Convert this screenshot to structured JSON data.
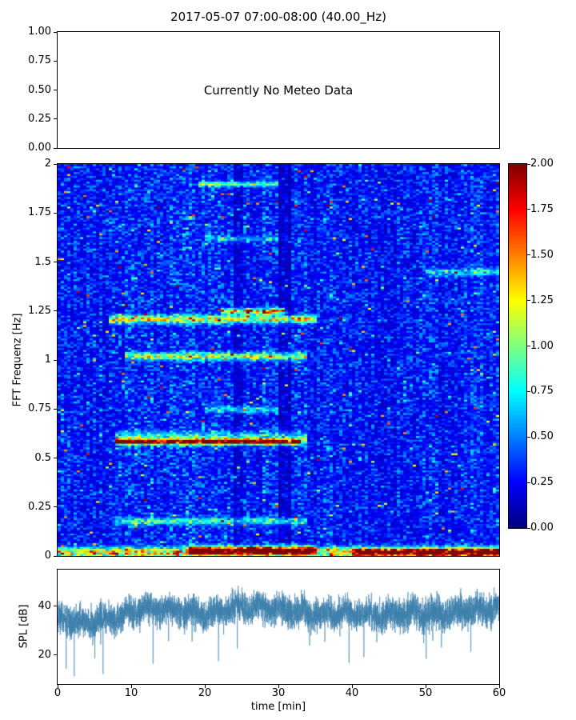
{
  "title": "2017-05-07 07:00-08:00 (40.00_Hz)",
  "meteo_panel": {
    "message": "Currently No Meteo Data",
    "yticks": [
      "1.00",
      "0.75",
      "0.50",
      "0.25",
      "0.00"
    ]
  },
  "spectrogram_panel": {
    "ylabel": "FFT Frequenz [Hz]",
    "yticks": [
      "2",
      "1.75",
      "1.5",
      "1.25",
      "1",
      "0.75",
      "0.5",
      "0.25",
      "0"
    ]
  },
  "colorbar": {
    "ticks": [
      "2.00",
      "1.75",
      "1.50",
      "1.25",
      "1.00",
      "0.75",
      "0.50",
      "0.25",
      "0.00"
    ]
  },
  "spl_panel": {
    "ylabel": "SPL [dB]",
    "xlabel": "time [min]",
    "yticks": [
      "40",
      "20"
    ],
    "xticks": [
      "0",
      "10",
      "20",
      "30",
      "40",
      "50",
      "60"
    ]
  },
  "chart_data": [
    {
      "type": "line",
      "panel": "meteo",
      "title": "2017-05-07 07:00-08:00 (40.00_Hz)",
      "annotation": "Currently No Meteo Data",
      "ylim": [
        0,
        1
      ],
      "yticks": [
        0,
        0.25,
        0.5,
        0.75,
        1.0
      ],
      "series": []
    },
    {
      "type": "heatmap",
      "panel": "spectrogram",
      "ylabel": "FFT Frequenz [Hz]",
      "x_range_min": [
        0,
        60
      ],
      "y_range_hz": [
        0,
        2
      ],
      "vmin": 0,
      "vmax": 2,
      "colormap": "jet",
      "n_time_bins": 138,
      "n_freq_bins": 205,
      "seed": 20170507,
      "background": {
        "base": 0.16,
        "speckle": 0.38,
        "cyan_speckle_prob": 0.035,
        "hot_speckle_prob": 0.006,
        "edge_boost_t0": 55,
        "edge_boost_amp": 0.2
      },
      "bright_time_window_min": [
        8,
        35
      ],
      "dark_columns_min": [
        24.5,
        31
      ],
      "bands": [
        {
          "f0": 0.585,
          "width": 0.008,
          "t0": 8,
          "t1": 33,
          "amp": 2.0
        },
        {
          "f0": 0.6,
          "width": 0.022,
          "t0": 8,
          "t1": 34,
          "amp": 0.7
        },
        {
          "f0": 1.21,
          "width": 0.014,
          "t0": 7,
          "t1": 35,
          "amp": 1.0
        },
        {
          "f0": 1.25,
          "width": 0.01,
          "t0": 22,
          "t1": 31,
          "amp": 1.5
        },
        {
          "f0": 1.02,
          "width": 0.013,
          "t0": 9,
          "t1": 34,
          "amp": 0.9
        },
        {
          "f0": 1.9,
          "width": 0.01,
          "t0": 19,
          "t1": 30,
          "amp": 0.7
        },
        {
          "f0": 0.18,
          "width": 0.013,
          "t0": 8,
          "t1": 34,
          "amp": 0.55
        },
        {
          "f0": 0.75,
          "width": 0.012,
          "t0": 20,
          "t1": 30,
          "amp": 0.45
        },
        {
          "f0": 1.62,
          "width": 0.01,
          "t0": 20,
          "t1": 30,
          "amp": 0.4
        },
        {
          "f0": 1.45,
          "width": 0.013,
          "t0": 50,
          "t1": 60,
          "amp": 0.5
        },
        {
          "f0": 0.02,
          "width": 0.018,
          "t0": 0,
          "t1": 60,
          "amp": 1.1
        },
        {
          "f0": 0.03,
          "width": 0.014,
          "t0": 18,
          "t1": 35,
          "amp": 1.7
        },
        {
          "f0": 0.02,
          "width": 0.014,
          "t0": 40,
          "t1": 60,
          "amp": 1.5
        }
      ]
    },
    {
      "type": "line",
      "panel": "spl",
      "name": "SPL",
      "ylabel": "SPL [dB]",
      "xlabel": "time [min]",
      "x_range_min": [
        0,
        60
      ],
      "ylim": [
        8,
        56
      ],
      "approx_value_range_db": [
        12,
        52
      ],
      "seed": 7,
      "color": "#3c80ab",
      "noise_spread_db": 6.5,
      "dropout_prob": 0.004,
      "mean_profile": [
        [
          0,
          35
        ],
        [
          4,
          34
        ],
        [
          8,
          36
        ],
        [
          12,
          40
        ],
        [
          16,
          39
        ],
        [
          20,
          37
        ],
        [
          24,
          40
        ],
        [
          28,
          40
        ],
        [
          32,
          39
        ],
        [
          36,
          37
        ],
        [
          40,
          38
        ],
        [
          44,
          37
        ],
        [
          48,
          38
        ],
        [
          52,
          37
        ],
        [
          56,
          39
        ],
        [
          60,
          40
        ]
      ]
    }
  ]
}
